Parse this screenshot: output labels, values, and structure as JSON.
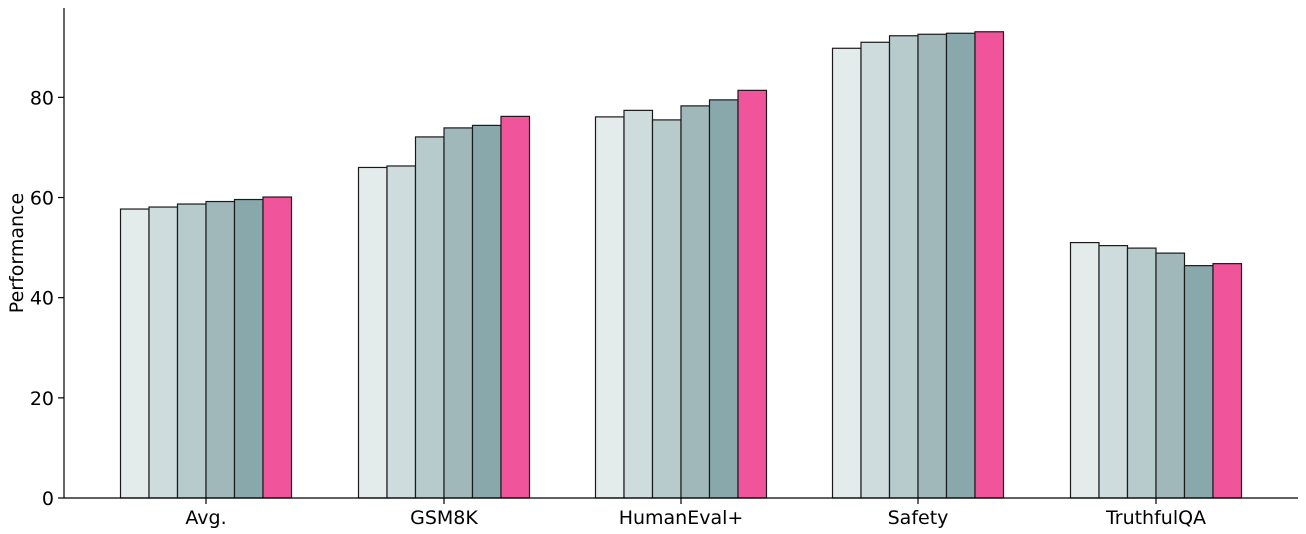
{
  "chart_data": {
    "type": "bar",
    "title": "",
    "xlabel": "",
    "ylabel": "Performance",
    "categories": [
      "Avg.",
      "GSM8K",
      "HumanEval+",
      "Safety",
      "TruthfulQA"
    ],
    "ylim": [
      0,
      98
    ],
    "yticks": [
      0,
      20,
      40,
      60,
      80
    ],
    "grid": false,
    "legend": false,
    "series": [
      {
        "color": "#e4eceb",
        "values": [
          57.7,
          66.0,
          76.1,
          89.8,
          51.0
        ]
      },
      {
        "color": "#cedcde",
        "values": [
          58.1,
          66.3,
          77.4,
          91.0,
          50.4
        ]
      },
      {
        "color": "#b7cacc",
        "values": [
          58.7,
          72.1,
          75.5,
          92.3,
          49.9
        ]
      },
      {
        "color": "#a0b8ba",
        "values": [
          59.2,
          73.9,
          78.3,
          92.6,
          48.9
        ]
      },
      {
        "color": "#89a8ab",
        "values": [
          59.6,
          74.4,
          79.5,
          92.8,
          46.4
        ]
      },
      {
        "color": "#f0549a",
        "values": [
          60.1,
          76.2,
          81.4,
          93.1,
          46.8
        ]
      }
    ]
  }
}
